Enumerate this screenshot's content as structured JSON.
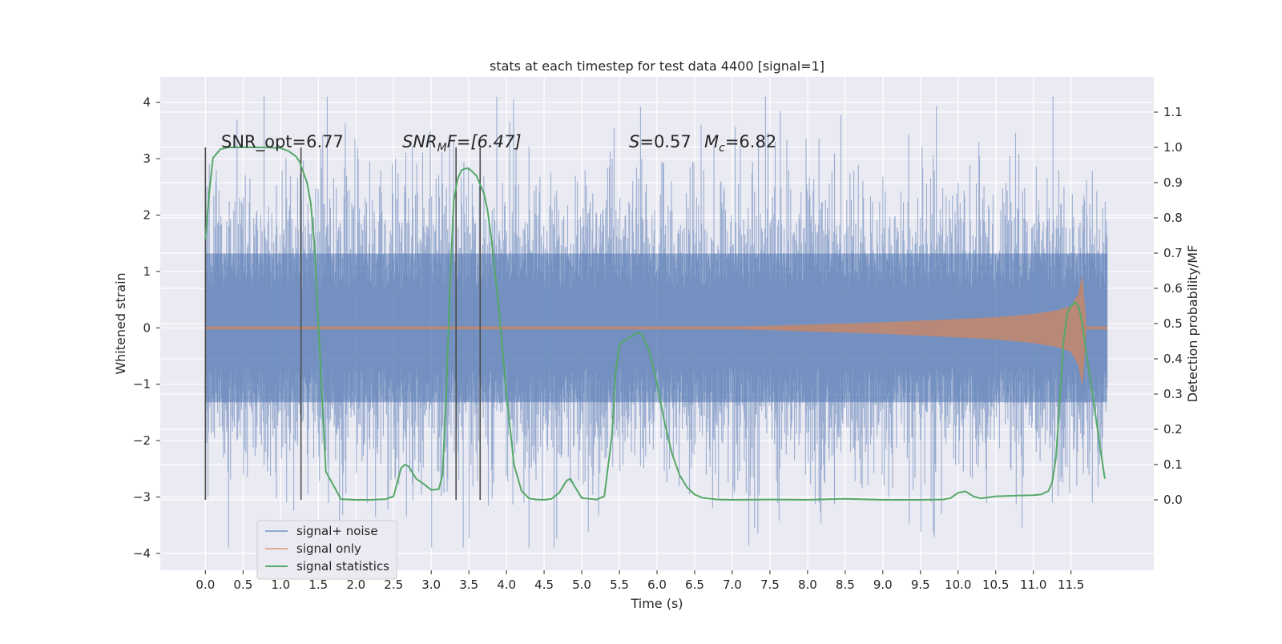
{
  "chart_data": {
    "type": "line",
    "title": "stats at each timestep for test data 4400 [signal=1]",
    "xlabel": "Time (s)",
    "ylabel": "Whitened strain",
    "ylabel_right": "Detection probability/MF",
    "xlim": [
      -0.6,
      12.6
    ],
    "ylim": [
      -4.3,
      4.45
    ],
    "ylim_right": [
      -0.2,
      1.2
    ],
    "x_ticks": [
      "0.0",
      "0.5",
      "1.0",
      "1.5",
      "2.0",
      "2.5",
      "3.0",
      "3.5",
      "4.0",
      "4.5",
      "5.0",
      "5.5",
      "6.0",
      "6.5",
      "7.0",
      "7.5",
      "8.0",
      "8.5",
      "9.0",
      "9.5",
      "10.0",
      "10.5",
      "11.0",
      "11.5"
    ],
    "y_ticks": [
      "4",
      "3",
      "2",
      "1",
      "0",
      "−1",
      "−2",
      "−3",
      "−4"
    ],
    "y_ticks_right": [
      "1.1",
      "1.0",
      "0.9",
      "0.8",
      "0.7",
      "0.6",
      "0.5",
      "0.4",
      "0.3",
      "0.2",
      "0.1",
      "0.0"
    ],
    "grid": true,
    "legend_position": "lower-left",
    "annotations": {
      "snr_opt": "SNR_opt=6.77",
      "snr_mf_sym": "SNR",
      "snr_mf_sub": "M",
      "snr_mf_rest": "F=[6.47]",
      "spin_sym": "S",
      "spin_rest": "=0.57",
      "mc_sym": "M",
      "mc_sub": "c",
      "mc_rest": "=6.82"
    },
    "vlines_x": [
      0.0,
      1.27,
      3.33,
      3.65
    ],
    "series": [
      {
        "name": "signal+ noise",
        "color": "#4c72b0",
        "axis": "left",
        "x_range": [
          0.0,
          11.98
        ],
        "amplitude_core": 1.0,
        "amplitude_peak": 4.1
      },
      {
        "name": "signal only",
        "color": "#dd8452",
        "axis": "left",
        "x": [
          0.0,
          7.0,
          7.5,
          8.0,
          8.5,
          9.0,
          9.5,
          10.0,
          10.5,
          11.0,
          11.3,
          11.5,
          11.6,
          11.65,
          11.7,
          11.98
        ],
        "envelope": [
          0.02,
          0.02,
          0.03,
          0.05,
          0.07,
          0.09,
          0.12,
          0.15,
          0.18,
          0.24,
          0.3,
          0.38,
          0.6,
          0.9,
          0.02,
          0.02
        ]
      },
      {
        "name": "signal statistics",
        "color": "#55a868",
        "axis": "right",
        "x": [
          0.0,
          0.05,
          0.1,
          0.2,
          0.3,
          0.5,
          0.8,
          1.0,
          1.1,
          1.2,
          1.25,
          1.3,
          1.35,
          1.4,
          1.45,
          1.5,
          1.6,
          1.8,
          2.0,
          2.2,
          2.4,
          2.5,
          2.55,
          2.6,
          2.65,
          2.7,
          2.8,
          2.9,
          3.0,
          3.1,
          3.15,
          3.2,
          3.25,
          3.3,
          3.35,
          3.4,
          3.45,
          3.5,
          3.6,
          3.7,
          3.75,
          3.8,
          3.9,
          4.0,
          4.1,
          4.2,
          4.3,
          4.4,
          4.5,
          4.6,
          4.7,
          4.8,
          4.85,
          4.9,
          5.0,
          5.2,
          5.3,
          5.4,
          5.45,
          5.5,
          5.55,
          5.6,
          5.7,
          5.75,
          5.8,
          5.9,
          6.0,
          6.1,
          6.2,
          6.3,
          6.4,
          6.5,
          6.6,
          6.8,
          7.0,
          7.5,
          8.0,
          8.5,
          9.0,
          9.5,
          9.8,
          9.9,
          10.0,
          10.1,
          10.2,
          10.3,
          10.5,
          10.8,
          11.0,
          11.1,
          11.2,
          11.25,
          11.3,
          11.35,
          11.4,
          11.45,
          11.5,
          11.55,
          11.6,
          11.65,
          11.7,
          11.8,
          11.9,
          11.95
        ],
        "values": [
          0.74,
          0.87,
          0.97,
          0.995,
          1.0,
          1.0,
          1.0,
          0.998,
          0.99,
          0.975,
          0.96,
          0.93,
          0.9,
          0.84,
          0.72,
          0.5,
          0.08,
          0.002,
          0.0,
          0.0,
          0.002,
          0.01,
          0.05,
          0.09,
          0.1,
          0.095,
          0.06,
          0.045,
          0.028,
          0.03,
          0.07,
          0.3,
          0.62,
          0.85,
          0.91,
          0.935,
          0.94,
          0.94,
          0.92,
          0.87,
          0.82,
          0.74,
          0.54,
          0.3,
          0.1,
          0.025,
          0.004,
          0.001,
          0.0,
          0.003,
          0.02,
          0.055,
          0.06,
          0.04,
          0.005,
          0.001,
          0.01,
          0.18,
          0.36,
          0.44,
          0.45,
          0.455,
          0.47,
          0.475,
          0.47,
          0.42,
          0.33,
          0.22,
          0.13,
          0.07,
          0.035,
          0.015,
          0.006,
          0.001,
          0.0,
          0.001,
          0.0,
          0.003,
          0.0,
          0.0,
          0.001,
          0.005,
          0.02,
          0.024,
          0.01,
          0.004,
          0.01,
          0.012,
          0.013,
          0.015,
          0.025,
          0.05,
          0.12,
          0.28,
          0.45,
          0.53,
          0.55,
          0.56,
          0.55,
          0.5,
          0.42,
          0.28,
          0.13,
          0.06
        ]
      }
    ]
  }
}
